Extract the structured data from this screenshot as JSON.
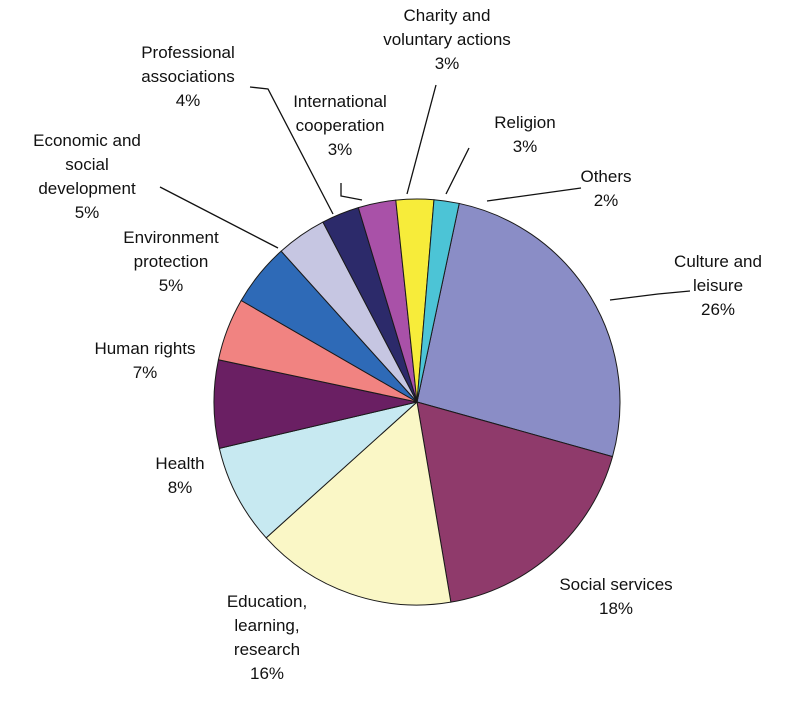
{
  "chart_data": {
    "type": "pie",
    "start_angle_deg": 12,
    "direction": "clockwise",
    "slices": [
      {
        "label": [
          "Culture and",
          "leisure"
        ],
        "percent_label": "26%",
        "value": 26,
        "color": "#8a8dc6"
      },
      {
        "label": [
          "Social services"
        ],
        "percent_label": "18%",
        "value": 18,
        "color": "#8f3a6b"
      },
      {
        "label": [
          "Education,",
          "learning,",
          "research"
        ],
        "percent_label": "16%",
        "value": 16,
        "color": "#faf7c6"
      },
      {
        "label": [
          "Health"
        ],
        "percent_label": "8%",
        "value": 8,
        "color": "#c7e9f1"
      },
      {
        "label": [
          "Human rights"
        ],
        "percent_label": "7%",
        "value": 7,
        "color": "#6a1f63"
      },
      {
        "label": [
          "Environment",
          "protection"
        ],
        "percent_label": "5%",
        "value": 5,
        "color": "#f18381"
      },
      {
        "label": [
          "Economic and",
          "social",
          "development"
        ],
        "percent_label": "5%",
        "value": 5,
        "color": "#2e6ab7"
      },
      {
        "label": [
          "Professional",
          "associations"
        ],
        "percent_label": "4%",
        "value": 4,
        "color": "#c6c6e2"
      },
      {
        "label": [
          "International",
          "cooperation"
        ],
        "percent_label": "3%",
        "value": 3,
        "color": "#2c2a6a"
      },
      {
        "label": [
          "Charity and",
          "voluntary actions"
        ],
        "percent_label": "3%",
        "value": 3,
        "color": "#a951a8"
      },
      {
        "label": [
          "Religion"
        ],
        "percent_label": "3%",
        "value": 3,
        "color": "#f7ec3a"
      },
      {
        "label": [
          "Others"
        ],
        "percent_label": "2%",
        "value": 2,
        "color": "#4cc4d6"
      }
    ]
  }
}
